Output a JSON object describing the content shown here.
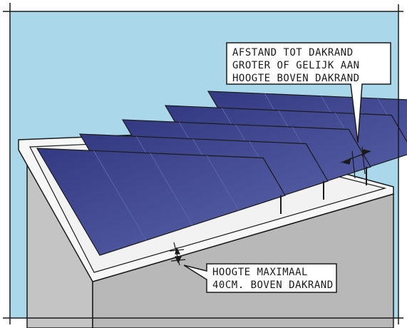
{
  "annotations": {
    "distance_rule": {
      "lines": [
        "AFSTAND TOT DAKRAND",
        "GROTER OF GELIJK AAN",
        "HOOGTE BOVEN DAKRAND"
      ]
    },
    "height_rule": {
      "lines": [
        "HOOGTE MAXIMAAL",
        "40CM. BOVEN DAKRAND"
      ]
    }
  },
  "colors": {
    "sky": "#aad8ea",
    "roof_surface": "#f2f2f2",
    "parapet_top": "#f7f7f7",
    "wall_front": "#c4c4c4",
    "wall_side": "#b8b8b8",
    "panel_fill": "#343a82",
    "panel_highlight": "#5a63ab",
    "ink": "#1a1a1a"
  },
  "panel_rows": 5,
  "icons": [
    "solar-panel-icon",
    "roof-icon",
    "sky-icon"
  ]
}
